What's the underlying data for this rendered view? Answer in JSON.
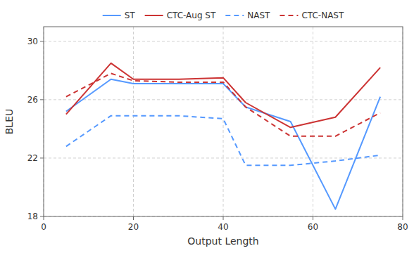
{
  "chart_data": {
    "type": "line",
    "x": [
      5,
      15,
      20,
      30,
      40,
      45,
      55,
      65,
      75
    ],
    "series": [
      {
        "name": "ST",
        "color": "#5599ff",
        "line_style": "solid",
        "values": [
          25.2,
          27.4,
          27.1,
          27.1,
          27.1,
          25.5,
          24.5,
          18.5,
          26.2
        ]
      },
      {
        "name": "CTC-Aug ST",
        "color": "#cc3333",
        "line_style": "solid",
        "values": [
          25.0,
          28.5,
          27.4,
          27.4,
          27.5,
          25.8,
          24.1,
          24.8,
          28.2
        ]
      },
      {
        "name": "NAST",
        "color": "#5599ff",
        "line_style": "dashed",
        "values": [
          22.8,
          24.9,
          24.9,
          24.9,
          24.7,
          21.5,
          21.5,
          21.8,
          22.2
        ]
      },
      {
        "name": "CTC-NAST",
        "color": "#cc3333",
        "line_style": "dashed",
        "values": [
          26.2,
          27.8,
          27.3,
          27.2,
          27.2,
          25.5,
          23.5,
          23.5,
          25.1
        ]
      }
    ],
    "xlabel": "Output Length",
    "ylabel": "BLEU",
    "xlim": [
      0,
      80
    ],
    "ylim": [
      18,
      31
    ],
    "xticks": [
      0,
      20,
      40,
      60,
      80
    ],
    "yticks": [
      18,
      22,
      26,
      30
    ],
    "grid": true,
    "legend": "top"
  }
}
